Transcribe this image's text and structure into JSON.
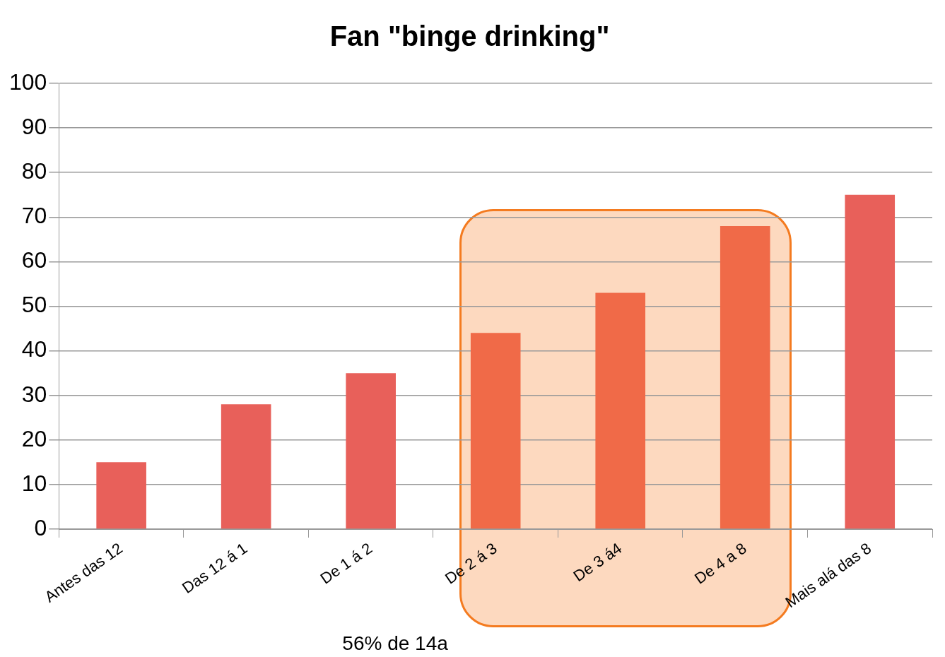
{
  "chart_data": {
    "type": "bar",
    "title": "Fan \"binge drinking\"",
    "categories": [
      "Antes das 12",
      "Das 12 á 1",
      "De 1 á 2",
      "De 2 á 3",
      "De 3 á4",
      "De 4 a 8",
      "Mais alá das 8"
    ],
    "values": [
      15,
      28,
      35,
      44,
      53,
      68,
      75
    ],
    "colors": [
      "#e8605a",
      "#e8605a",
      "#e8605a",
      "#f06a48",
      "#f06a48",
      "#f06a48",
      "#e8605a"
    ],
    "ylim": [
      0,
      100
    ],
    "yticks": [
      0,
      10,
      20,
      30,
      40,
      50,
      60,
      70,
      80,
      90,
      100
    ],
    "grid": "y",
    "legend": false,
    "annotations": [
      "56% de 14a"
    ]
  }
}
